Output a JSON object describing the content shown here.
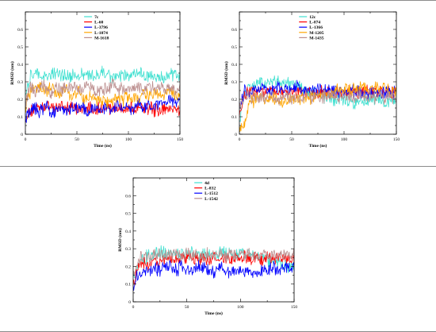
{
  "figure": {
    "separator_color": "#8c8c8c"
  },
  "chart_data": [
    {
      "type": "line",
      "panel": "top-left",
      "xlabel": "Time (ns)",
      "ylabel": "RMSD (nm)",
      "xlim": [
        0,
        150
      ],
      "ylim": [
        0,
        0.7
      ],
      "xticks": [
        0,
        50,
        100,
        150
      ],
      "yticks": [
        0,
        0.1,
        0.2,
        0.3,
        0.4,
        0.5,
        0.6
      ],
      "grid": false,
      "legend_position": "top-center",
      "x": [
        0,
        5,
        10,
        15,
        20,
        25,
        30,
        35,
        40,
        45,
        50,
        55,
        60,
        65,
        70,
        75,
        80,
        85,
        90,
        95,
        100,
        105,
        110,
        115,
        120,
        125,
        130,
        135,
        140,
        145,
        150
      ],
      "series": [
        {
          "name": "7c",
          "color": "#40e0d0",
          "values": [
            0.22,
            0.33,
            0.34,
            0.34,
            0.33,
            0.34,
            0.35,
            0.33,
            0.34,
            0.34,
            0.33,
            0.35,
            0.34,
            0.33,
            0.34,
            0.35,
            0.34,
            0.33,
            0.34,
            0.34,
            0.33,
            0.34,
            0.35,
            0.34,
            0.33,
            0.34,
            0.34,
            0.33,
            0.34,
            0.34,
            0.33
          ]
        },
        {
          "name": "L-60",
          "color": "#ff0000",
          "values": [
            0.08,
            0.13,
            0.14,
            0.15,
            0.15,
            0.14,
            0.15,
            0.16,
            0.15,
            0.15,
            0.14,
            0.15,
            0.15,
            0.14,
            0.15,
            0.15,
            0.16,
            0.15,
            0.15,
            0.14,
            0.15,
            0.15,
            0.14,
            0.14,
            0.15,
            0.14,
            0.14,
            0.15,
            0.14,
            0.14,
            0.14
          ]
        },
        {
          "name": "L-3796",
          "color": "#0000ff",
          "values": [
            0.1,
            0.14,
            0.15,
            0.13,
            0.17,
            0.12,
            0.14,
            0.16,
            0.13,
            0.15,
            0.14,
            0.16,
            0.13,
            0.15,
            0.14,
            0.13,
            0.16,
            0.14,
            0.17,
            0.15,
            0.16,
            0.14,
            0.18,
            0.16,
            0.17,
            0.15,
            0.18,
            0.17,
            0.19,
            0.18,
            0.19
          ]
        },
        {
          "name": "L-1074",
          "color": "#ffa500",
          "values": [
            0.16,
            0.24,
            0.28,
            0.26,
            0.25,
            0.27,
            0.24,
            0.23,
            0.25,
            0.22,
            0.24,
            0.22,
            0.2,
            0.21,
            0.19,
            0.2,
            0.18,
            0.19,
            0.21,
            0.2,
            0.22,
            0.2,
            0.21,
            0.23,
            0.22,
            0.24,
            0.23,
            0.22,
            0.24,
            0.23,
            0.22
          ]
        },
        {
          "name": "M-1618",
          "color": "#bc8f8f",
          "values": [
            0.18,
            0.27,
            0.25,
            0.28,
            0.26,
            0.24,
            0.27,
            0.25,
            0.28,
            0.26,
            0.27,
            0.25,
            0.28,
            0.26,
            0.24,
            0.27,
            0.25,
            0.28,
            0.26,
            0.27,
            0.25,
            0.26,
            0.28,
            0.25,
            0.27,
            0.26,
            0.28,
            0.26,
            0.27,
            0.25,
            0.26
          ]
        }
      ]
    },
    {
      "type": "line",
      "panel": "top-right",
      "xlabel": "Time (ns)",
      "ylabel": "RMSD (nm)",
      "xlim": [
        0,
        150
      ],
      "ylim": [
        0,
        0.7
      ],
      "xticks": [
        0,
        50,
        100,
        150
      ],
      "yticks": [
        0,
        0.1,
        0.2,
        0.3,
        0.4,
        0.5,
        0.6
      ],
      "grid": false,
      "legend_position": "top-center",
      "x": [
        0,
        5,
        10,
        15,
        20,
        25,
        30,
        35,
        40,
        45,
        50,
        55,
        60,
        65,
        70,
        75,
        80,
        85,
        90,
        95,
        100,
        105,
        110,
        115,
        120,
        125,
        130,
        135,
        140,
        145,
        150
      ],
      "series": [
        {
          "name": "12c",
          "color": "#40e0d0",
          "values": [
            0.05,
            0.24,
            0.26,
            0.28,
            0.3,
            0.29,
            0.31,
            0.3,
            0.29,
            0.3,
            0.28,
            0.27,
            0.26,
            0.25,
            0.24,
            0.23,
            0.22,
            0.2,
            0.19,
            0.21,
            0.2,
            0.19,
            0.18,
            0.2,
            0.19,
            0.21,
            0.2,
            0.19,
            0.18,
            0.2,
            0.19
          ]
        },
        {
          "name": "L-874",
          "color": "#ff0000",
          "values": [
            0.1,
            0.24,
            0.25,
            0.24,
            0.25,
            0.24,
            0.25,
            0.24,
            0.25,
            0.24,
            0.25,
            0.24,
            0.25,
            0.24,
            0.25,
            0.24,
            0.25,
            0.24,
            0.25,
            0.24,
            0.25,
            0.24,
            0.25,
            0.24,
            0.25,
            0.24,
            0.25,
            0.24,
            0.25,
            0.24,
            0.25
          ]
        },
        {
          "name": "L-1366",
          "color": "#0000ff",
          "values": [
            0.15,
            0.26,
            0.24,
            0.25,
            0.27,
            0.26,
            0.25,
            0.27,
            0.26,
            0.25,
            0.26,
            0.27,
            0.26,
            0.25,
            0.26,
            0.27,
            0.25,
            0.26,
            0.24,
            0.25,
            0.24,
            0.25,
            0.24,
            0.25,
            0.24,
            0.23,
            0.24,
            0.23,
            0.24,
            0.23,
            0.24
          ]
        },
        {
          "name": "M-1205",
          "color": "#ffa500",
          "values": [
            0.04,
            0.06,
            0.18,
            0.2,
            0.22,
            0.19,
            0.21,
            0.2,
            0.18,
            0.19,
            0.2,
            0.19,
            0.21,
            0.2,
            0.22,
            0.21,
            0.23,
            0.22,
            0.24,
            0.25,
            0.26,
            0.25,
            0.26,
            0.27,
            0.26,
            0.25,
            0.26,
            0.27,
            0.26,
            0.25,
            0.24
          ]
        },
        {
          "name": "M-1435",
          "color": "#bc8f8f",
          "values": [
            0.15,
            0.22,
            0.21,
            0.22,
            0.21,
            0.22,
            0.21,
            0.2,
            0.21,
            0.22,
            0.21,
            0.2,
            0.21,
            0.22,
            0.21,
            0.22,
            0.21,
            0.22,
            0.23,
            0.22,
            0.21,
            0.22,
            0.21,
            0.22,
            0.21,
            0.22,
            0.21,
            0.22,
            0.21,
            0.22,
            0.21
          ]
        }
      ]
    },
    {
      "type": "line",
      "panel": "bottom",
      "xlabel": "Time (ns)",
      "ylabel": "RMSD (nm)",
      "xlim": [
        0,
        150
      ],
      "ylim": [
        0,
        0.7
      ],
      "xticks": [
        0,
        50,
        100,
        150
      ],
      "yticks": [
        0,
        0.1,
        0.2,
        0.3,
        0.4,
        0.5,
        0.6
      ],
      "grid": false,
      "legend_position": "top-center",
      "x": [
        0,
        5,
        10,
        15,
        20,
        25,
        30,
        35,
        40,
        45,
        50,
        55,
        60,
        65,
        70,
        75,
        80,
        85,
        90,
        95,
        100,
        105,
        110,
        115,
        120,
        125,
        130,
        135,
        140,
        145,
        150
      ],
      "series": [
        {
          "name": "4d",
          "color": "#40e0d0",
          "values": [
            0.12,
            0.22,
            0.25,
            0.26,
            0.27,
            0.28,
            0.27,
            0.28,
            0.27,
            0.28,
            0.27,
            0.28,
            0.27,
            0.26,
            0.27,
            0.28,
            0.27,
            0.28,
            0.27,
            0.26,
            0.27,
            0.28,
            0.27,
            0.26,
            0.25,
            0.24,
            0.23,
            0.22,
            0.21,
            0.2,
            0.19
          ]
        },
        {
          "name": "L-832",
          "color": "#ff0000",
          "values": [
            0.1,
            0.21,
            0.22,
            0.21,
            0.23,
            0.22,
            0.24,
            0.23,
            0.24,
            0.25,
            0.24,
            0.25,
            0.24,
            0.25,
            0.24,
            0.25,
            0.24,
            0.25,
            0.24,
            0.25,
            0.24,
            0.25,
            0.24,
            0.25,
            0.24,
            0.25,
            0.24,
            0.25,
            0.24,
            0.25,
            0.24
          ]
        },
        {
          "name": "L-1512",
          "color": "#0000ff",
          "values": [
            0.08,
            0.16,
            0.18,
            0.17,
            0.19,
            0.18,
            0.2,
            0.19,
            0.18,
            0.2,
            0.19,
            0.18,
            0.2,
            0.19,
            0.18,
            0.17,
            0.19,
            0.18,
            0.17,
            0.18,
            0.17,
            0.18,
            0.17,
            0.16,
            0.18,
            0.17,
            0.19,
            0.18,
            0.19,
            0.2,
            0.19
          ]
        },
        {
          "name": "L-1542",
          "color": "#bc8f8f",
          "values": [
            0.15,
            0.24,
            0.26,
            0.25,
            0.27,
            0.26,
            0.27,
            0.26,
            0.27,
            0.26,
            0.27,
            0.26,
            0.27,
            0.26,
            0.27,
            0.26,
            0.27,
            0.26,
            0.27,
            0.26,
            0.27,
            0.26,
            0.27,
            0.26,
            0.27,
            0.26,
            0.27,
            0.26,
            0.27,
            0.26,
            0.27
          ]
        }
      ]
    }
  ]
}
